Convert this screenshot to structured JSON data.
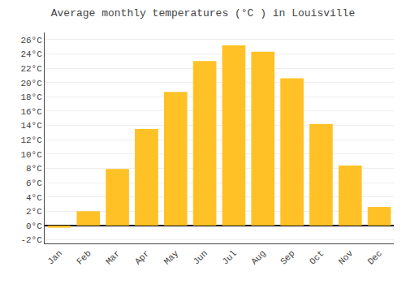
{
  "chart_data": {
    "type": "bar",
    "title": "Average monthly temperatures (°C ) in Louisville",
    "categories": [
      "Jan",
      "Feb",
      "Mar",
      "Apr",
      "May",
      "Jun",
      "Jul",
      "Aug",
      "Sep",
      "Oct",
      "Nov",
      "Dec"
    ],
    "values": [
      -0.3,
      2.0,
      7.9,
      13.5,
      18.7,
      23.0,
      25.2,
      24.3,
      20.6,
      14.2,
      8.4,
      2.6
    ],
    "color": "#FFC125",
    "ylim": [
      -2.5,
      27
    ],
    "yticks": [
      {
        "value": -2,
        "label": "-2°C"
      },
      {
        "value": 0,
        "label": "0°C"
      },
      {
        "value": 2,
        "label": "2°C"
      },
      {
        "value": 4,
        "label": "4°C"
      },
      {
        "value": 6,
        "label": "6°C"
      },
      {
        "value": 8,
        "label": "8°C"
      },
      {
        "value": 10,
        "label": "10°C"
      },
      {
        "value": 12,
        "label": "12°C"
      },
      {
        "value": 14,
        "label": "14°C"
      },
      {
        "value": 16,
        "label": "16°C"
      },
      {
        "value": 18,
        "label": "18°C"
      },
      {
        "value": 20,
        "label": "20°C"
      },
      {
        "value": 22,
        "label": "22°C"
      },
      {
        "value": 24,
        "label": "24°C"
      },
      {
        "value": 26,
        "label": "26°C"
      }
    ],
    "grid": true
  }
}
